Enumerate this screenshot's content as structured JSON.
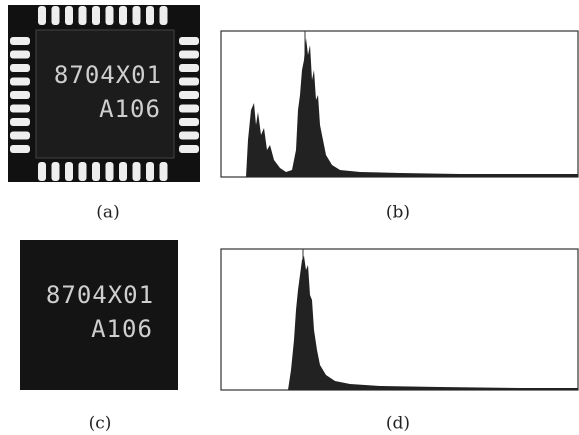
{
  "figure": {
    "panels": [
      {
        "label": "(a)",
        "chip_text": [
          "8704X01",
          "A106"
        ]
      },
      {
        "label": "(b)"
      },
      {
        "label": "(c)",
        "chip_text": [
          "8704X01",
          "A106"
        ]
      },
      {
        "label": "(d)"
      }
    ]
  }
}
